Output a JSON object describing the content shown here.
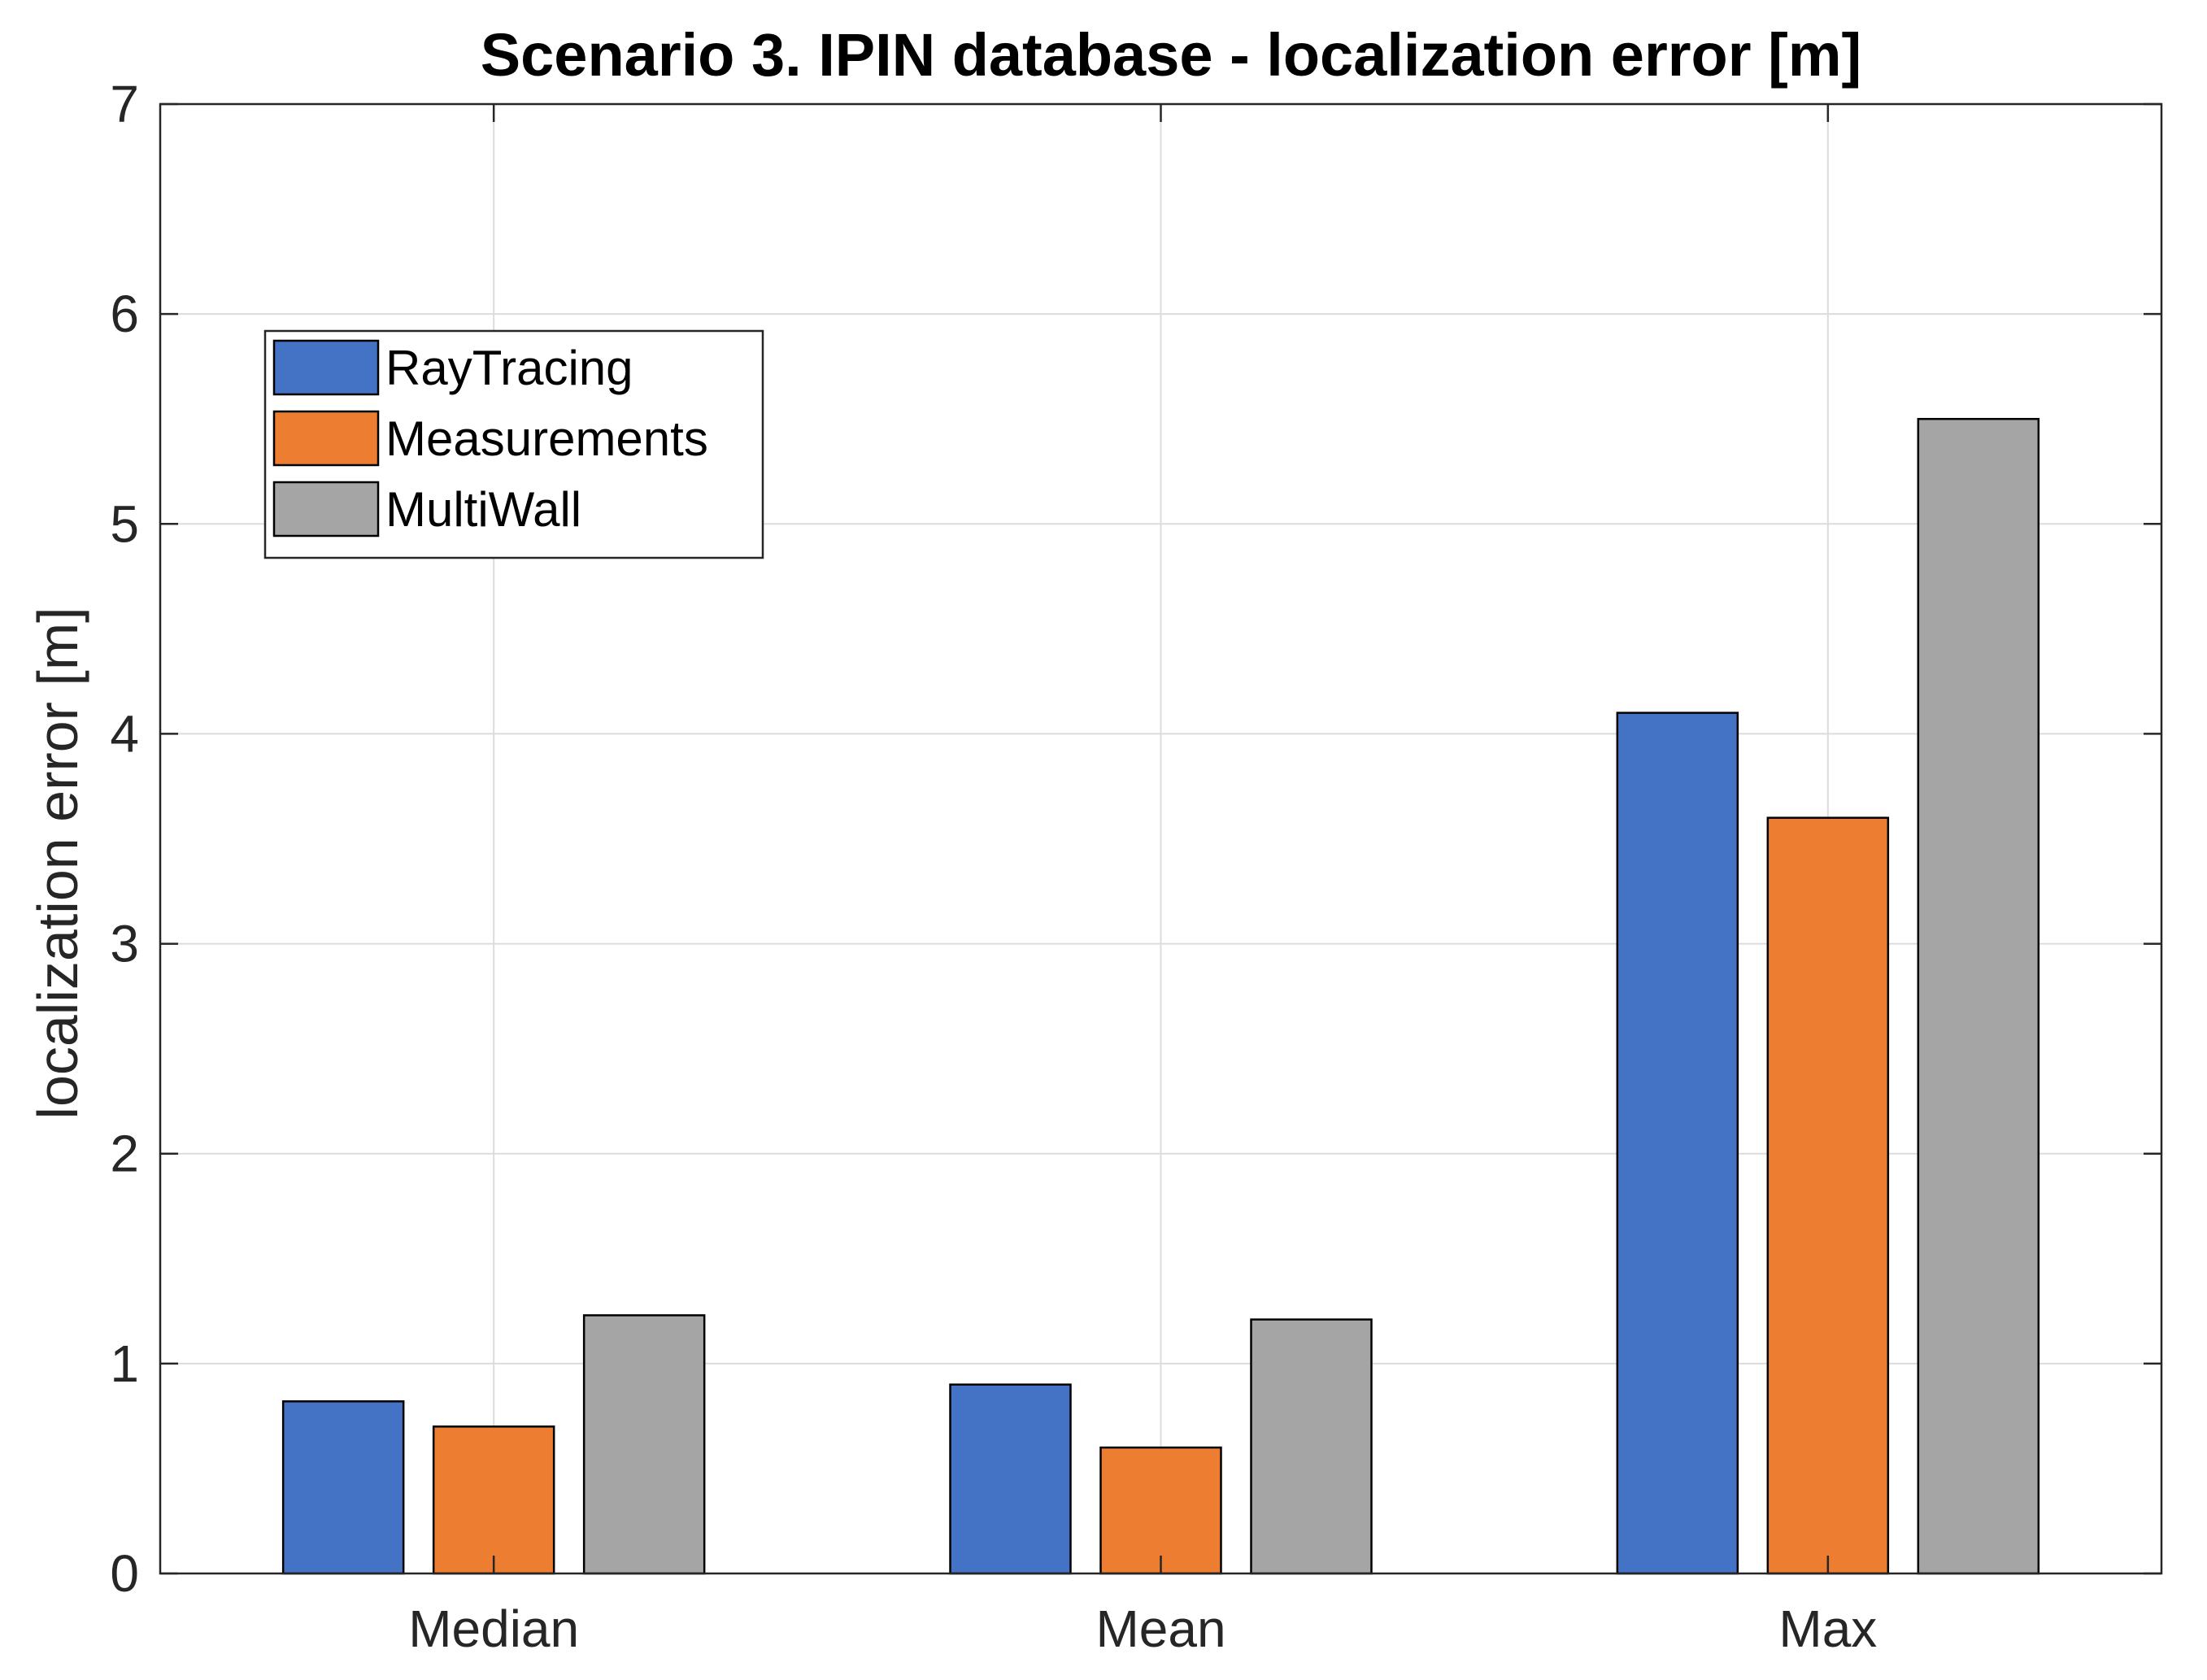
{
  "chart_data": {
    "type": "bar",
    "title": "Scenario 3. IPIN database - localization error [m]",
    "xlabel": "",
    "ylabel": "localization error [m]",
    "categories": [
      "Median",
      "Mean",
      "Max"
    ],
    "series": [
      {
        "name": "RayTracing",
        "color": "#4472c4",
        "values": [
          0.82,
          0.9,
          4.1
        ]
      },
      {
        "name": "Measurements",
        "color": "#ed7d31",
        "values": [
          0.7,
          0.6,
          3.6
        ]
      },
      {
        "name": "MultiWall",
        "color": "#a5a5a5",
        "values": [
          1.23,
          1.21,
          5.5
        ]
      }
    ],
    "ylim": [
      0,
      7
    ],
    "yticks": [
      "0",
      "1",
      "2",
      "3",
      "4",
      "5",
      "6",
      "7"
    ],
    "grid": true,
    "legend_position": "top-left"
  }
}
